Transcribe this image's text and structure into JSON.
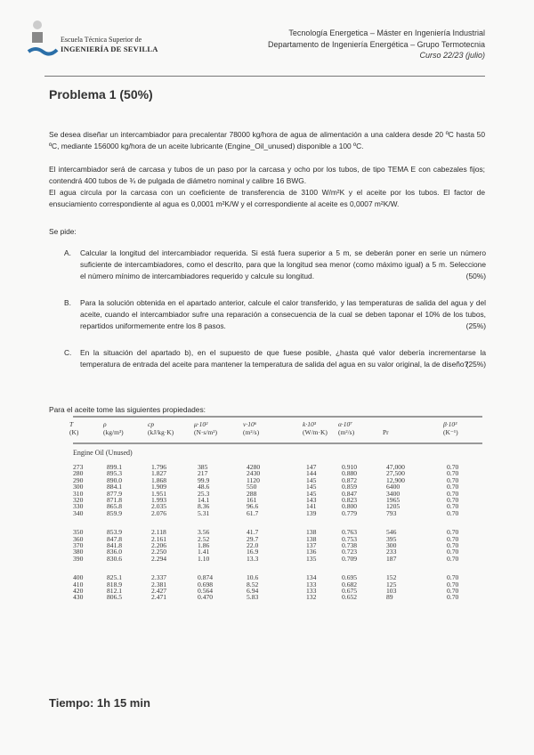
{
  "header": {
    "logo_line1": "Escuela Técnica Superior de",
    "logo_line2": "INGENIERÍA DE SEVILLA",
    "line1": "Tecnología Energetica – Máster en Ingeniería Industrial",
    "line2": "Departamento de Ingeniería Energética – Grupo Termotecnia",
    "line3": "Curso 22/23 (julio)"
  },
  "title": "Problema 1  (50%)",
  "paragraphs": [
    "Se desea diseñar un intercambiador para precalentar 78000 kg/hora de agua de alimentación a una caldera desde 20 ºC hasta 50 ºC, mediante 156000 kg/hora de un aceite lubricante (Engine_Oil_unused) disponible a 100 ºC.",
    "El intercambiador será de carcasa y tubos de un paso por la carcasa y ocho por los tubos, de tipo TEMA E con cabezales fijos; contendrá 400 tubos de ¾ de pulgada de diámetro nominal y calibre 16 BWG.",
    "El agua circula por la carcasa con un coeficiente de transferencia de 3100 W/m²K y el aceite por los tubos. El factor de ensuciamiento correspondiente al agua es 0,0001 m²K/W y el correspondiente al aceite es 0,0007 m²K/W.",
    "Se pide:"
  ],
  "items": [
    {
      "letter": "A.",
      "text": "Calcular la longitud del intercambiador requerida. Si está fuera superior a 5 m, se deberán poner en serie un número suficiente de intercambiadores, como el descrito, para que la longitud sea menor (como máximo igual) a 5 m. Seleccione el número mínimo de intercambiadores requerido y calcule su longitud.",
      "pct": "(50%)"
    },
    {
      "letter": "B.",
      "text": "Para la solución obtenida en el apartado anterior, calcule el calor transferido, y las temperaturas de salida del agua y del aceite, cuando el intercambiador sufre una reparación a consecuencia de la cual se deben taponar el 10% de los tubos, repartidos uniformemente entre los 8 pasos.",
      "pct": "(25%)"
    },
    {
      "letter": "C.",
      "text": "En la situación del apartado b), en el supuesto de que fuese posible, ¿hasta qué valor debería incrementarse la temperatura de entrada del aceite para mantener la temperatura de salida del agua en su valor original, la de diseño?",
      "pct": "(25%)"
    }
  ],
  "table": {
    "intro": "Para el aceite tome las siguientes propiedades:",
    "headers": [
      [
        "T",
        "(K)"
      ],
      [
        "ρ",
        "(kg/m³)"
      ],
      [
        "cp",
        "(kJ/kg·K)"
      ],
      [
        "μ·10²",
        "(N·s/m²)"
      ],
      [
        "ν·10⁶",
        "(m²/s)"
      ],
      [
        "k·10³",
        "(W/m·K)"
      ],
      [
        "α·10⁷",
        "(m²/s)"
      ],
      [
        "",
        "Pr"
      ],
      [
        "β·10³",
        "(K⁻¹)"
      ]
    ],
    "section": "Engine Oil (Unused)",
    "rows": [
      [
        "273",
        "899.1",
        "1.796",
        "385",
        "4280",
        "147",
        "0.910",
        "47,000",
        "0.70"
      ],
      [
        "280",
        "895.3",
        "1.827",
        "217",
        "2430",
        "144",
        "0.880",
        "27,500",
        "0.70"
      ],
      [
        "290",
        "890.0",
        "1.868",
        "99.9",
        "1120",
        "145",
        "0.872",
        "12,900",
        "0.70"
      ],
      [
        "300",
        "884.1",
        "1.909",
        "48.6",
        "550",
        "145",
        "0.859",
        "6400",
        "0.70"
      ],
      [
        "310",
        "877.9",
        "1.951",
        "25.3",
        "288",
        "145",
        "0.847",
        "3400",
        "0.70"
      ],
      [
        "320",
        "871.8",
        "1.993",
        "14.1",
        "161",
        "143",
        "0.823",
        "1965",
        "0.70"
      ],
      [
        "330",
        "865.8",
        "2.035",
        "8.36",
        "96.6",
        "141",
        "0.800",
        "1205",
        "0.70"
      ],
      [
        "340",
        "859.9",
        "2.076",
        "5.31",
        "61.7",
        "139",
        "0.779",
        "793",
        "0.70"
      ],
      [
        "350",
        "853.9",
        "2.118",
        "3.56",
        "41.7",
        "138",
        "0.763",
        "546",
        "0.70"
      ],
      [
        "360",
        "847.8",
        "2.161",
        "2.52",
        "29.7",
        "138",
        "0.753",
        "395",
        "0.70"
      ],
      [
        "370",
        "841.8",
        "2.206",
        "1.86",
        "22.0",
        "137",
        "0.738",
        "300",
        "0.70"
      ],
      [
        "380",
        "836.0",
        "2.250",
        "1.41",
        "16.9",
        "136",
        "0.723",
        "233",
        "0.70"
      ],
      [
        "390",
        "830.6",
        "2.294",
        "1.10",
        "13.3",
        "135",
        "0.709",
        "187",
        "0.70"
      ],
      [
        "400",
        "825.1",
        "2.337",
        "0.874",
        "10.6",
        "134",
        "0.695",
        "152",
        "0.70"
      ],
      [
        "410",
        "818.9",
        "2.381",
        "0.698",
        "8.52",
        "133",
        "0.682",
        "125",
        "0.70"
      ],
      [
        "420",
        "812.1",
        "2.427",
        "0.564",
        "6.94",
        "133",
        "0.675",
        "103",
        "0.70"
      ],
      [
        "430",
        "806.5",
        "2.471",
        "0.470",
        "5.83",
        "132",
        "0.652",
        "89",
        "0.70"
      ]
    ]
  },
  "footer": "Tiempo: 1h 15 min"
}
